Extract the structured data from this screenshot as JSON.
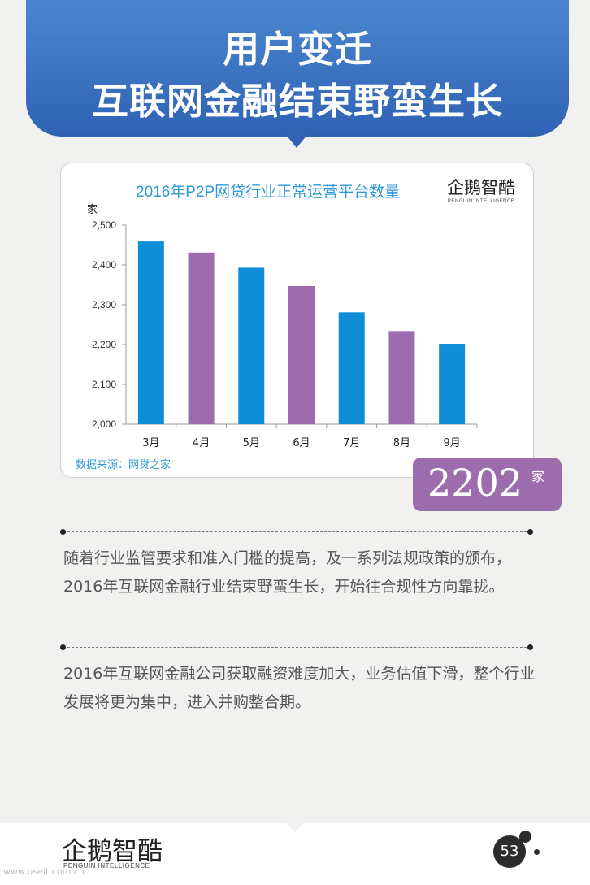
{
  "header": {
    "title_line1": "用户变迁",
    "title_line2": "互联网金融结束野蛮生长"
  },
  "chart_data": {
    "type": "bar",
    "title": "2016年P2P网贷行业正常运营平台数量",
    "ylabel": "家",
    "xlabel": "",
    "categories": [
      "3月",
      "4月",
      "5月",
      "6月",
      "7月",
      "8月",
      "9月"
    ],
    "values": [
      2459,
      2431,
      2393,
      2347,
      2281,
      2234,
      2202
    ],
    "bar_colors": [
      "#0f8ed8",
      "#9b6bad",
      "#0f8ed8",
      "#9b6bad",
      "#0f8ed8",
      "#9b6bad",
      "#0f8ed8"
    ],
    "ylim": [
      2000,
      2500
    ],
    "yticks": [
      2000,
      2100,
      2200,
      2300,
      2400,
      2500
    ],
    "ytick_labels": [
      "2,000",
      "2,100",
      "2,200",
      "2,300",
      "2,400",
      "2,500"
    ],
    "grid": false,
    "source": "数据来源：网贷之家"
  },
  "logo": {
    "name": "企鹅智酷",
    "subtitle": "PENGUIN INTELLIGENCE"
  },
  "highlight": {
    "value": "2202",
    "unit": "家",
    "color": "#9c6cad"
  },
  "paragraphs": [
    "随着行业监管要求和准入门槛的提高，及一系列法规政策的颁布，2016年互联网金融行业结束野蛮生长，开始往合规性方向靠拢。",
    "2016年互联网金融公司获取融资难度加大，业务估值下滑，整个行业发展将更为集中，进入并购整合期。"
  ],
  "footer": {
    "page_number": "53",
    "watermark": "www.useit.com.cn"
  },
  "colors": {
    "banner": "#3a72c2",
    "chart_title": "#2b9ad7",
    "bar_blue": "#0f8ed8",
    "bar_purple": "#9b6bad"
  }
}
